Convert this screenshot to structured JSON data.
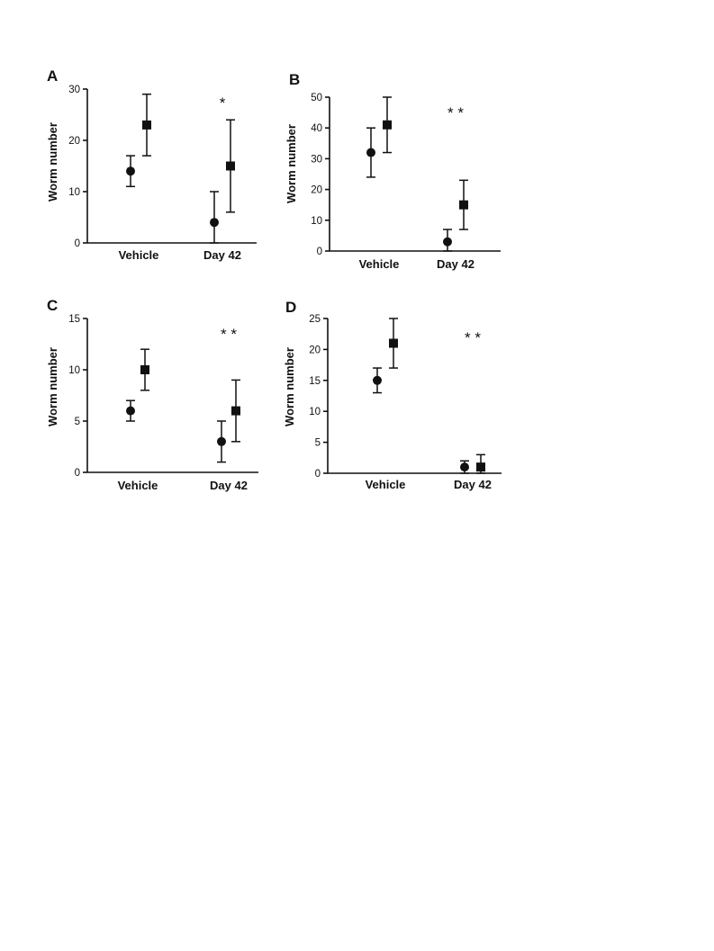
{
  "chart_data": [
    {
      "panel": "A",
      "type": "scatter",
      "ylabel": "Worm number",
      "ylim": [
        0,
        30
      ],
      "yticks": [
        0,
        10,
        20,
        30
      ],
      "categories": [
        "Vehicle",
        "Day 42"
      ],
      "annotations": [
        "",
        "*"
      ],
      "series": [
        {
          "marker": "circle",
          "values": [
            14,
            4
          ],
          "err_low": [
            11,
            0
          ],
          "err_high": [
            17,
            10
          ]
        },
        {
          "marker": "square",
          "values": [
            23,
            15
          ],
          "err_low": [
            17,
            6
          ],
          "err_high": [
            29,
            24
          ]
        }
      ]
    },
    {
      "panel": "B",
      "type": "scatter",
      "ylabel": "Worm number",
      "ylim": [
        0,
        50
      ],
      "yticks": [
        0,
        10,
        20,
        30,
        40,
        50
      ],
      "categories": [
        "Vehicle",
        "Day 42"
      ],
      "annotations": [
        "",
        "* *"
      ],
      "series": [
        {
          "marker": "circle",
          "values": [
            32,
            3
          ],
          "err_low": [
            24,
            0
          ],
          "err_high": [
            40,
            7
          ]
        },
        {
          "marker": "square",
          "values": [
            41,
            15
          ],
          "err_low": [
            32,
            7
          ],
          "err_high": [
            50,
            23
          ]
        }
      ]
    },
    {
      "panel": "C",
      "type": "scatter",
      "ylabel": "Worm number",
      "ylim": [
        0,
        15
      ],
      "yticks": [
        0,
        5,
        10,
        15
      ],
      "categories": [
        "Vehicle",
        "Day 42"
      ],
      "annotations": [
        "",
        "* *"
      ],
      "series": [
        {
          "marker": "circle",
          "values": [
            6,
            3
          ],
          "err_low": [
            5,
            1
          ],
          "err_high": [
            7,
            5
          ]
        },
        {
          "marker": "square",
          "values": [
            10,
            6
          ],
          "err_low": [
            8,
            3
          ],
          "err_high": [
            12,
            9
          ]
        }
      ]
    },
    {
      "panel": "D",
      "type": "scatter",
      "ylabel": "Worm number",
      "ylim": [
        0,
        25
      ],
      "yticks": [
        0,
        5,
        10,
        15,
        20,
        25
      ],
      "categories": [
        "Vehicle",
        "Day 42"
      ],
      "annotations": [
        "",
        "* *"
      ],
      "series": [
        {
          "marker": "circle",
          "values": [
            15,
            1
          ],
          "err_low": [
            13,
            0
          ],
          "err_high": [
            17,
            2
          ]
        },
        {
          "marker": "square",
          "values": [
            21,
            1
          ],
          "err_low": [
            17,
            0
          ],
          "err_high": [
            25,
            3
          ]
        }
      ]
    }
  ]
}
